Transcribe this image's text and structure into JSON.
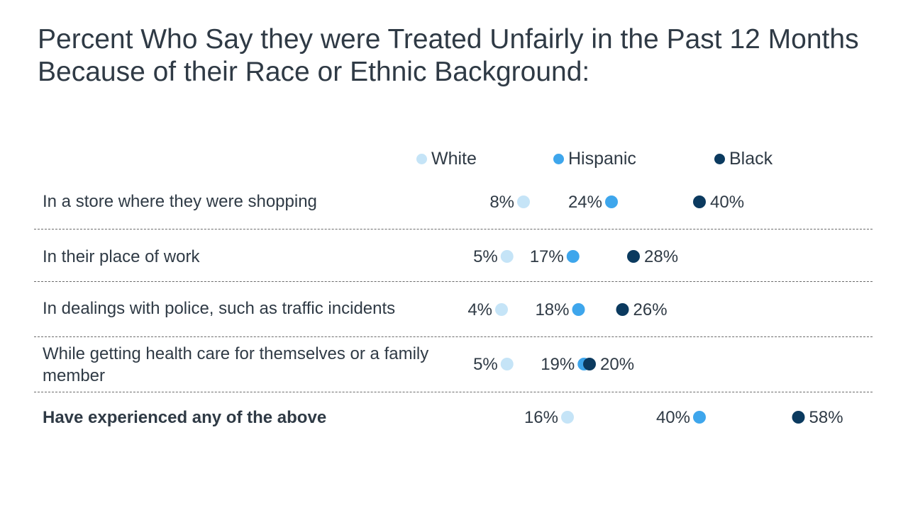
{
  "title": "Percent Who Say they were Treated Unfairly in the Past 12 Months Because of their Race or Ethnic Background:",
  "chart_data": {
    "type": "scatter",
    "title": "Percent Who Say they were Treated Unfairly in the Past 12 Months Because of their Race or Ethnic Background:",
    "categories": [
      "In a store where they were shopping",
      "In their place of work",
      "In dealings with police, such as traffic incidents",
      "While getting health care for themselves or a family member",
      "Have experienced any of the above"
    ],
    "series": [
      {
        "name": "White",
        "color": "#c5e4f7",
        "values": [
          8,
          5,
          4,
          5,
          16
        ],
        "labels": [
          "8%",
          "5%",
          "4%",
          "5%",
          "16%"
        ]
      },
      {
        "name": "Hispanic",
        "color": "#3ea6ec",
        "values": [
          24,
          17,
          18,
          19,
          40
        ],
        "labels": [
          "24%",
          "17%",
          "18%",
          "19%",
          "40%"
        ]
      },
      {
        "name": "Black",
        "color": "#0b3a5f",
        "values": [
          40,
          28,
          26,
          20,
          58
        ],
        "labels": [
          "40%",
          "28%",
          "26%",
          "20%",
          "58%"
        ]
      }
    ],
    "legend_position": "top",
    "emphasized_category": "Have experienced any of the above"
  }
}
